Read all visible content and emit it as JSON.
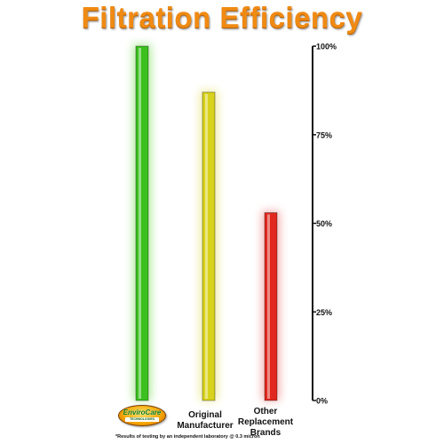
{
  "chart_data": {
    "type": "bar",
    "title": "Filtration Efficiency",
    "categories": [
      "EnviroCare",
      "Original Manufacturer",
      "Other Replacement Brands"
    ],
    "values": [
      100,
      87,
      53
    ],
    "ylim": [
      0,
      100
    ],
    "yticks": [
      0,
      25,
      50,
      75,
      100
    ],
    "ytick_labels": [
      "0%",
      "25%",
      "50%",
      "75%",
      "100%"
    ],
    "y_axis_side": "right",
    "colors": [
      "#3cc020",
      "#d8d21c",
      "#e0281e"
    ],
    "glow_colors": [
      "#a8e890",
      "#eeea9a",
      "#f4a8a8"
    ]
  },
  "logo": {
    "brand": "EnviroCare",
    "sub": "TECHNOLOGIES"
  },
  "labels": {
    "original_line1": "Original",
    "original_line2": "Manufacturer",
    "other_line1": "Other",
    "other_line2": "Replacement",
    "other_line3": "Brands"
  },
  "footnote": "*Results of testing by an independent laboratory @ 0.3 micron"
}
